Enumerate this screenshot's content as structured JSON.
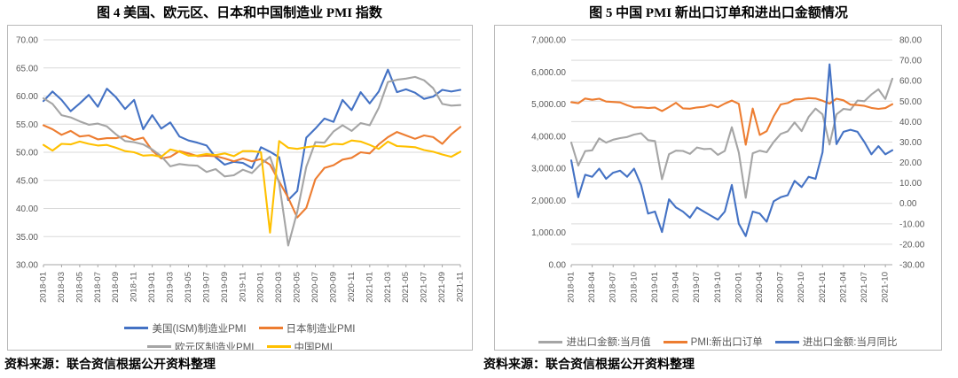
{
  "style": {
    "gridline_color": "#d9d9d9",
    "axis_line_color": "#a6a6a6",
    "axis_text_color": "#595959",
    "series_blue": "#4472C4",
    "series_orange": "#ED7D31",
    "series_gray": "#A5A5A5",
    "series_yellow": "#FFC000"
  },
  "chart_data": [
    {
      "type": "line",
      "title": "图 4  美国、欧元区、日本和中国制造业 PMI 指数",
      "source": "资料来源：联合资信根据公开资料整理",
      "x_frequency": "monthly",
      "x_start": "2018-01",
      "x_end": "2021-11",
      "x_tick_labels": [
        "2018-01",
        "2018-03",
        "2018-05",
        "2018-07",
        "2018-09",
        "2018-11",
        "2019-01",
        "2019-03",
        "2019-05",
        "2019-07",
        "2019-09",
        "2019-11",
        "2020-01",
        "2020-03",
        "2020-05",
        "2020-07",
        "2020-09",
        "2020-11",
        "2021-01",
        "2021-03",
        "2021-05",
        "2021-07",
        "2021-09",
        "2021-11"
      ],
      "y_left": {
        "tick_labels": [
          "70.00",
          "65.00",
          "60.00",
          "55.00",
          "50.00",
          "45.00",
          "40.00",
          "35.00",
          "30.00"
        ],
        "grid": true
      },
      "legend_position": "bottom",
      "series": [
        {
          "name": "美国(ISM)制造业PMI",
          "color": "#4472C4",
          "axis": "left",
          "values": [
            59.1,
            60.8,
            59.3,
            57.3,
            58.7,
            60.2,
            58.1,
            61.3,
            59.8,
            57.7,
            59.3,
            54.1,
            56.6,
            54.2,
            55.3,
            52.8,
            52.1,
            51.7,
            51.2,
            49.1,
            47.8,
            48.3,
            48.1,
            47.2,
            50.9,
            50.1,
            49.1,
            41.5,
            43.1,
            52.6,
            54.2,
            56.0,
            55.4,
            59.3,
            57.5,
            60.7,
            58.7,
            60.8,
            64.7,
            60.7,
            61.2,
            60.6,
            59.5,
            59.9,
            61.1,
            60.8,
            61.1
          ]
        },
        {
          "name": "日本制造业PMI",
          "color": "#ED7D31",
          "axis": "left",
          "values": [
            54.8,
            54.1,
            53.1,
            53.8,
            52.8,
            53.0,
            52.3,
            52.5,
            52.5,
            52.9,
            52.2,
            52.6,
            50.3,
            48.9,
            49.2,
            50.2,
            49.8,
            49.3,
            49.4,
            49.3,
            48.9,
            48.4,
            48.9,
            48.4,
            48.8,
            47.8,
            44.8,
            41.9,
            38.4,
            40.1,
            45.2,
            47.2,
            47.7,
            48.7,
            49.0,
            50.0,
            49.8,
            51.4,
            52.7,
            53.6,
            53.0,
            52.4,
            53.0,
            52.7,
            51.5,
            53.2,
            54.5
          ]
        },
        {
          "name": "欧元区制造业PMI",
          "color": "#A5A5A5",
          "axis": "left",
          "values": [
            59.6,
            58.6,
            56.6,
            56.2,
            55.5,
            54.9,
            55.1,
            54.6,
            53.2,
            52.0,
            51.8,
            51.4,
            50.5,
            49.3,
            47.5,
            47.9,
            47.7,
            47.6,
            46.5,
            47.0,
            45.7,
            45.9,
            46.9,
            46.3,
            47.9,
            49.2,
            44.5,
            33.4,
            39.4,
            47.4,
            51.8,
            51.7,
            53.7,
            54.8,
            53.8,
            55.2,
            54.8,
            57.9,
            62.5,
            62.9,
            63.1,
            63.4,
            62.8,
            61.4,
            58.6,
            58.3,
            58.4
          ]
        },
        {
          "name": "中国PMI",
          "color": "#FFC000",
          "axis": "left",
          "values": [
            51.3,
            50.3,
            51.5,
            51.4,
            51.9,
            51.5,
            51.2,
            51.3,
            50.8,
            50.2,
            50.0,
            49.4,
            49.5,
            49.2,
            50.5,
            50.1,
            49.4,
            49.4,
            49.7,
            49.5,
            49.8,
            49.3,
            50.2,
            50.2,
            50.0,
            35.7,
            52.0,
            50.8,
            50.6,
            50.9,
            51.1,
            51.0,
            51.5,
            51.4,
            52.1,
            51.9,
            51.3,
            50.6,
            51.9,
            51.1,
            51.0,
            50.9,
            50.4,
            50.1,
            49.6,
            49.2,
            50.1
          ]
        }
      ]
    },
    {
      "type": "line",
      "title": "图 5  中国 PMI 新出口订单和进出口金额情况",
      "source": "资料来源：联合资信根据公开资料整理",
      "x_frequency": "monthly",
      "x_start": "2018-01",
      "x_end": "2021-11",
      "x_tick_labels": [
        "2018-01",
        "2018-04",
        "2018-07",
        "2018-10",
        "2019-01",
        "2019-04",
        "2019-07",
        "2019-10",
        "2020-01",
        "2020-04",
        "2020-07",
        "2020-10",
        "2021-01",
        "2021-04",
        "2021-07",
        "2021-10"
      ],
      "y_left": {
        "tick_labels": [
          "7,000.00",
          "6,000.00",
          "5,000.00",
          "4,000.00",
          "3,000.00",
          "2,000.00",
          "1,000.00",
          "0.00"
        ],
        "grid": false
      },
      "y_right": {
        "tick_labels": [
          "80.00",
          "70.00",
          "60.00",
          "50.00",
          "40.00",
          "30.00",
          "20.00",
          "10.00",
          "0.00",
          "-10.00",
          "-20.00",
          "-30.00"
        ],
        "grid": true
      },
      "legend_position": "bottom",
      "series": [
        {
          "name": "进出口金额:当月值",
          "color": "#A5A5A5",
          "axis": "left",
          "values": [
            3804,
            3087,
            3535,
            3561,
            3934,
            3801,
            3891,
            3942,
            3973,
            4051,
            4093,
            3877,
            3850,
            2660,
            3440,
            3550,
            3540,
            3450,
            3650,
            3600,
            3610,
            3420,
            3540,
            4280,
            3490,
            2080,
            3470,
            3550,
            3500,
            3820,
            4070,
            4150,
            4430,
            4160,
            4600,
            4860,
            4680,
            3740,
            4680,
            4850,
            4820,
            5110,
            5090,
            5300,
            5460,
            5160,
            5790
          ]
        },
        {
          "name": "PMI:新出口订单",
          "color": "#ED7D31",
          "axis": "right",
          "values": [
            49.5,
            49.0,
            51.3,
            50.7,
            51.2,
            49.8,
            49.6,
            49.4,
            48.0,
            46.9,
            47.0,
            46.6,
            46.9,
            45.2,
            47.1,
            49.2,
            46.5,
            46.3,
            46.9,
            47.2,
            48.2,
            47.0,
            48.8,
            50.3,
            48.7,
            28.7,
            46.4,
            33.5,
            35.3,
            42.6,
            48.4,
            49.1,
            50.8,
            51.0,
            51.5,
            51.3,
            50.2,
            48.8,
            51.2,
            50.4,
            48.3,
            48.1,
            47.7,
            46.7,
            46.2,
            46.6,
            48.5
          ]
        },
        {
          "name": "进出口金额:当月同比",
          "color": "#4472C4",
          "axis": "right",
          "values": [
            21,
            3,
            14,
            13,
            17,
            12,
            15,
            16,
            13,
            17,
            9,
            -5,
            -4,
            -14,
            2,
            -2,
            -4,
            -7,
            -2,
            -4,
            -6,
            -8,
            -4,
            9,
            -10,
            -16,
            -4,
            -5,
            -9,
            1,
            3,
            4,
            11,
            8,
            13,
            12,
            25,
            68,
            29,
            35,
            36,
            35,
            30,
            24,
            28,
            24,
            26
          ]
        }
      ]
    }
  ]
}
